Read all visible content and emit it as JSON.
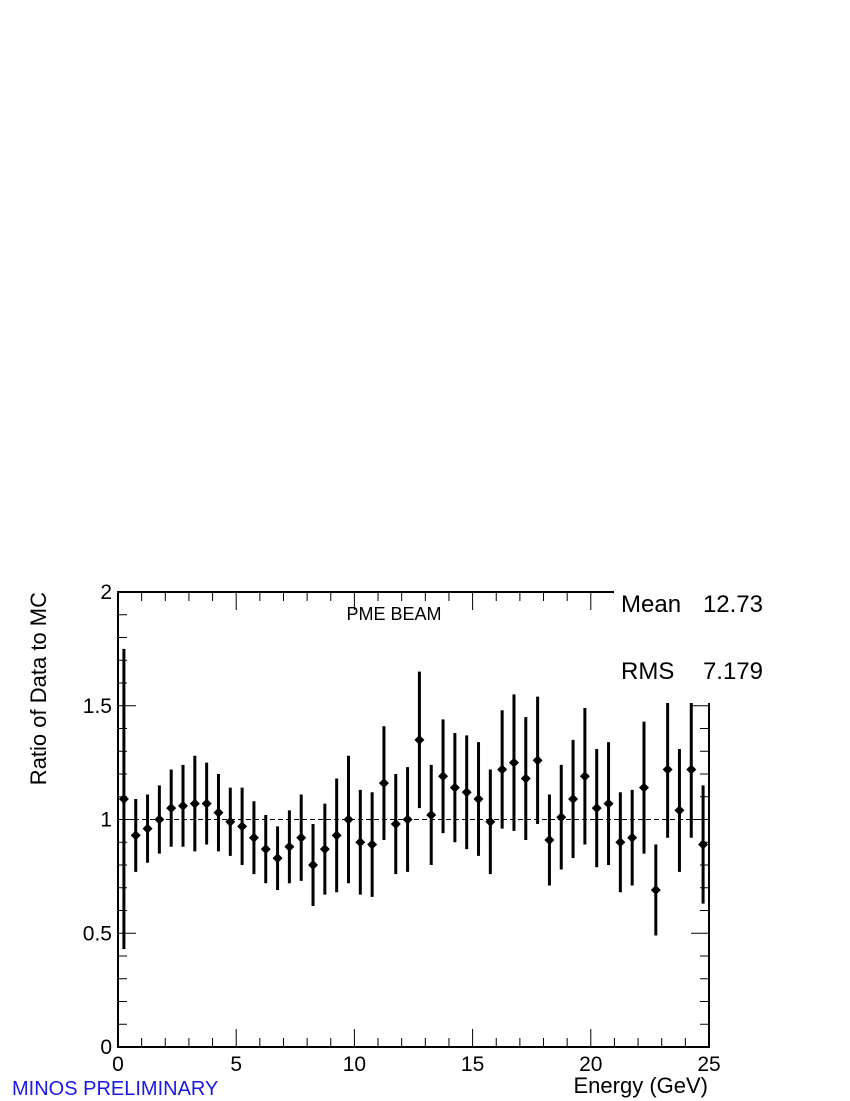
{
  "colors": {
    "watermark": "#1a1ae6",
    "markers": "#000000",
    "background": "#ffffff"
  },
  "watermark": "MINOS PRELIMINARY",
  "stats": {
    "mean_label": "Mean",
    "mean_value": "12.73",
    "rms_label": "RMS",
    "rms_value": "7.179"
  },
  "chart_data": {
    "type": "scatter",
    "title": "PME BEAM",
    "xlabel": "Energy (GeV)",
    "ylabel": "Ratio of Data to MC",
    "xlim": [
      0,
      25
    ],
    "ylim": [
      0,
      2
    ],
    "xticks": [
      0,
      5,
      10,
      15,
      20,
      25
    ],
    "yticks": [
      0,
      0.5,
      1,
      1.5,
      2
    ],
    "ytick_labels": [
      "0",
      "0.5",
      "1",
      "1.5",
      "2"
    ],
    "reference_line": 1,
    "grid": false,
    "series": [
      {
        "x": [
          0.25,
          0.75,
          1.25,
          1.75,
          2.25,
          2.75,
          3.25,
          3.75,
          4.25,
          4.75,
          5.25,
          5.75,
          6.25,
          6.75,
          7.25,
          7.75,
          8.25,
          8.75,
          9.25,
          9.75,
          10.25,
          10.75,
          11.25,
          11.75,
          12.25,
          12.75,
          13.25,
          13.75,
          14.25,
          14.75,
          15.25,
          15.75,
          16.25,
          16.75,
          17.25,
          17.75,
          18.25,
          18.75,
          19.25,
          19.75,
          20.25,
          20.75,
          21.25,
          21.75,
          22.25,
          22.75,
          23.25,
          23.75,
          24.25,
          24.75
        ],
        "y": [
          1.09,
          0.93,
          0.96,
          1.0,
          1.05,
          1.06,
          1.07,
          1.07,
          1.03,
          0.99,
          0.97,
          0.92,
          0.87,
          0.83,
          0.88,
          0.92,
          0.8,
          0.87,
          0.93,
          1.0,
          0.9,
          0.89,
          1.16,
          0.98,
          1.0,
          1.35,
          1.02,
          1.19,
          1.14,
          1.12,
          1.09,
          0.99,
          1.22,
          1.25,
          1.18,
          1.26,
          0.91,
          1.01,
          1.09,
          1.19,
          1.05,
          1.07,
          0.9,
          0.92,
          1.14,
          0.69,
          1.22,
          1.04,
          1.22,
          0.89
        ],
        "err": [
          0.66,
          0.16,
          0.15,
          0.15,
          0.17,
          0.18,
          0.21,
          0.18,
          0.17,
          0.15,
          0.17,
          0.16,
          0.15,
          0.14,
          0.16,
          0.19,
          0.18,
          0.2,
          0.25,
          0.28,
          0.23,
          0.23,
          0.25,
          0.22,
          0.23,
          0.3,
          0.22,
          0.25,
          0.24,
          0.25,
          0.25,
          0.23,
          0.26,
          0.3,
          0.27,
          0.28,
          0.2,
          0.23,
          0.26,
          0.3,
          0.26,
          0.27,
          0.22,
          0.21,
          0.29,
          0.2,
          0.3,
          0.27,
          0.3,
          0.26
        ]
      }
    ]
  }
}
